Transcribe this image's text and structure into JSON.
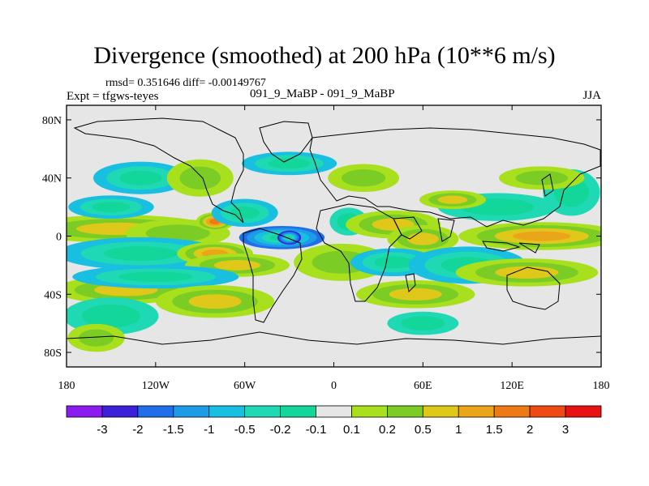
{
  "header": {
    "title": "Divergence (smoothed) at 200 hPa (10**6 m/s)",
    "stats": "rmsd= 0.351646 diff= -0.00149767",
    "expt": "Expt = tfgws-teyes",
    "cases": "091_9_MaBP - 091_9_MaBP",
    "season": "JJA"
  },
  "chart_data": {
    "type": "heatmap",
    "title": "Divergence (smoothed) at 200 hPa (10**6 m/s)",
    "x_range": [
      -180,
      180
    ],
    "y_range": [
      -90,
      90
    ],
    "x_ticks": [
      {
        "value": -180,
        "label": "180"
      },
      {
        "value": -120,
        "label": "120W"
      },
      {
        "value": -60,
        "label": "60W"
      },
      {
        "value": 0,
        "label": "0"
      },
      {
        "value": 60,
        "label": "60E"
      },
      {
        "value": 120,
        "label": "120E"
      },
      {
        "value": 180,
        "label": "180"
      }
    ],
    "y_ticks": [
      {
        "value": 80,
        "label": "80N"
      },
      {
        "value": 40,
        "label": "40N"
      },
      {
        "value": 0,
        "label": "0"
      },
      {
        "value": -40,
        "label": "40S"
      },
      {
        "value": -80,
        "label": "80S"
      }
    ],
    "colorbar": {
      "colors": [
        "#8c1bf0",
        "#3b22d8",
        "#1e6fe8",
        "#1e9be6",
        "#19bfe0",
        "#1fd9b5",
        "#12d69a",
        "#e6e6e6",
        "#a8e01e",
        "#7ccc26",
        "#e0c81a",
        "#eaa51a",
        "#ee7a16",
        "#ee4a13",
        "#e81212"
      ],
      "labels": [
        "-3",
        "-2",
        "-1.5",
        "-1",
        "-0.5",
        "-0.2",
        "-0.1",
        "0.1",
        "0.2",
        "0.5",
        "1",
        "1.5",
        "2",
        "3"
      ]
    },
    "features": [
      {
        "lon": -145,
        "lat": 5,
        "slon": 40,
        "slat": 6,
        "value": 0.9
      },
      {
        "lon": -105,
        "lat": 2,
        "slon": 22,
        "slat": 6,
        "value": 0.3
      },
      {
        "lon": -80,
        "lat": 10,
        "slon": 8,
        "slat": 4,
        "value": 1.7
      },
      {
        "lon": -60,
        "lat": 16,
        "slon": 14,
        "slat": 6,
        "value": -0.6
      },
      {
        "lon": -35,
        "lat": -1,
        "slon": 18,
        "slat": 5,
        "value": -1.7
      },
      {
        "lon": -30,
        "lat": -1,
        "slon": 5,
        "slat": 3,
        "value": -2.5
      },
      {
        "lon": -130,
        "lat": -12,
        "slon": 35,
        "slat": 7,
        "value": -0.8
      },
      {
        "lon": -80,
        "lat": -12,
        "slon": 16,
        "slat": 5,
        "value": 1.4
      },
      {
        "lon": -65,
        "lat": -20,
        "slon": 22,
        "slat": 5,
        "value": 0.9
      },
      {
        "lon": -140,
        "lat": -37,
        "slon": 30,
        "slat": 6,
        "value": 0.7
      },
      {
        "lon": -120,
        "lat": -28,
        "slon": 35,
        "slat": 5,
        "value": -0.5
      },
      {
        "lon": -80,
        "lat": -45,
        "slon": 25,
        "slat": 7,
        "value": 0.5
      },
      {
        "lon": -150,
        "lat": -55,
        "slon": 20,
        "slat": 8,
        "value": -0.4
      },
      {
        "lon": -130,
        "lat": 40,
        "slon": 20,
        "slat": 7,
        "value": -0.6
      },
      {
        "lon": -90,
        "lat": 40,
        "slon": 14,
        "slat": 8,
        "value": 0.4
      },
      {
        "lon": -30,
        "lat": 50,
        "slon": 20,
        "slat": 5,
        "value": -0.5
      },
      {
        "lon": -150,
        "lat": 20,
        "slon": 18,
        "slat": 5,
        "value": -0.5
      },
      {
        "lon": 10,
        "lat": 10,
        "slon": 8,
        "slat": 6,
        "value": -0.3
      },
      {
        "lon": 40,
        "lat": 8,
        "slon": 20,
        "slat": 6,
        "value": 0.5
      },
      {
        "lon": 60,
        "lat": -2,
        "slon": 15,
        "slat": 6,
        "value": 0.6
      },
      {
        "lon": 5,
        "lat": -18,
        "slon": 20,
        "slat": 8,
        "value": 0.4
      },
      {
        "lon": 40,
        "lat": -18,
        "slon": 18,
        "slat": 6,
        "value": -0.5
      },
      {
        "lon": 55,
        "lat": -40,
        "slon": 25,
        "slat": 6,
        "value": 0.6
      },
      {
        "lon": 90,
        "lat": -20,
        "slon": 25,
        "slat": 8,
        "value": -0.6
      },
      {
        "lon": 140,
        "lat": 0,
        "slon": 35,
        "slat": 6,
        "value": 1.0
      },
      {
        "lon": 110,
        "lat": 20,
        "slon": 25,
        "slat": 6,
        "value": -0.3
      },
      {
        "lon": 130,
        "lat": -25,
        "slon": 30,
        "slat": 6,
        "value": 0.6
      },
      {
        "lon": 160,
        "lat": 30,
        "slon": 12,
        "slat": 10,
        "value": -0.4
      },
      {
        "lon": 80,
        "lat": 25,
        "slon": 14,
        "slat": 4,
        "value": 0.5
      },
      {
        "lon": 20,
        "lat": 40,
        "slon": 15,
        "slat": 6,
        "value": 0.3
      },
      {
        "lon": 140,
        "lat": 40,
        "slon": 18,
        "slat": 5,
        "value": 0.4
      },
      {
        "lon": -160,
        "lat": -70,
        "slon": 12,
        "slat": 6,
        "value": 0.3
      },
      {
        "lon": 60,
        "lat": -60,
        "slon": 15,
        "slat": 5,
        "value": -0.3
      }
    ]
  }
}
